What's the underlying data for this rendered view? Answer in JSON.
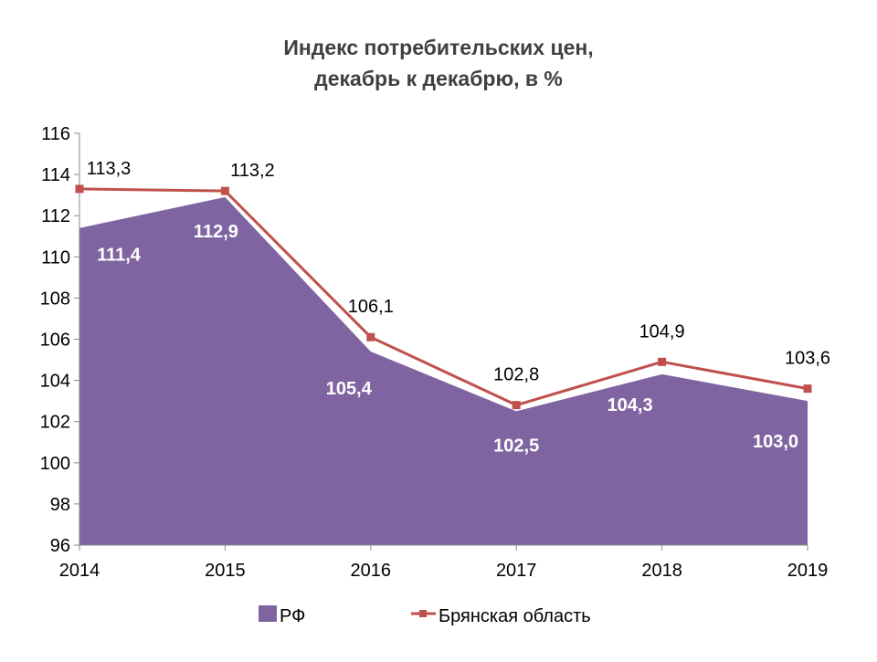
{
  "chart_data": {
    "type": "area+line",
    "title_lines": [
      "Индекс потребительских цен,",
      "декабрь к декабрю, в %"
    ],
    "categories": [
      "2014",
      "2015",
      "2016",
      "2017",
      "2018",
      "2019"
    ],
    "ylim": [
      96,
      116
    ],
    "yticks": [
      96,
      98,
      100,
      102,
      104,
      106,
      108,
      110,
      112,
      114,
      116
    ],
    "grid": false,
    "legend_position": "bottom",
    "series": [
      {
        "name": "РФ",
        "type": "area",
        "color": "#8064a2",
        "values": [
          111.4,
          112.9,
          105.4,
          102.5,
          104.3,
          103.0
        ],
        "labels": [
          "111,4",
          "112,9",
          "105,4",
          "102,5",
          "104,3",
          "103,0"
        ]
      },
      {
        "name": "Брянская область",
        "type": "line",
        "color": "#c0504d",
        "values": [
          113.3,
          113.2,
          106.1,
          102.8,
          104.9,
          103.6
        ],
        "labels": [
          "113,3",
          "113,2",
          "106,1",
          "102,8",
          "104,9",
          "103,6"
        ]
      }
    ]
  }
}
